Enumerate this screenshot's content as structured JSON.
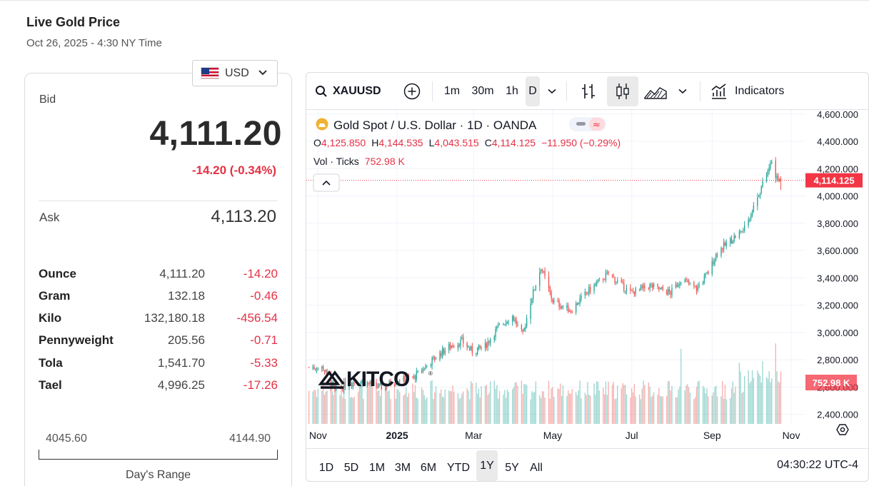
{
  "header": {
    "title": "Live Gold Price",
    "timestamp": "Oct 26, 2025 - 4:30 NY Time"
  },
  "currency": {
    "selected": "USD",
    "flag_icon": "us-flag-icon"
  },
  "quote": {
    "bid_label": "Bid",
    "bid": "4,111.20",
    "change": "-14.20 (-0.34%)",
    "ask_label": "Ask",
    "ask": "4,113.20"
  },
  "units": [
    {
      "name": "Ounce",
      "value": "4,111.20",
      "change": "-14.20"
    },
    {
      "name": "Gram",
      "value": "132.18",
      "change": "-0.46"
    },
    {
      "name": "Kilo",
      "value": "132,180.18",
      "change": "-456.54"
    },
    {
      "name": "Pennyweight",
      "value": "205.56",
      "change": "-0.71"
    },
    {
      "name": "Tola",
      "value": "1,541.70",
      "change": "-5.33"
    },
    {
      "name": "Tael",
      "value": "4,996.25",
      "change": "-17.26"
    }
  ],
  "day_range": {
    "low": "4045.60",
    "high": "4144.90",
    "label": "Day's Range"
  },
  "toolbar": {
    "symbol": "XAUUSD",
    "intervals": [
      "1m",
      "30m",
      "1h",
      "D"
    ],
    "active_interval": "D",
    "indicators_label": "Indicators"
  },
  "legend": {
    "title": "Gold Spot / U.S. Dollar · 1D · OANDA",
    "o_label": "O",
    "o": "4,125.850",
    "h_label": "H",
    "h": "4,144.535",
    "l_label": "L",
    "l": "4,043.515",
    "c_label": "C",
    "c": "4,114.125",
    "change": "−11.950 (−0.29%)",
    "vol_label": "Vol · Ticks",
    "vol": "752.98 K"
  },
  "watermark": "KITCO",
  "price_tag": "4,114.125",
  "volume_tag": "752.98 K",
  "range_buttons": [
    "1D",
    "5D",
    "1M",
    "3M",
    "6M",
    "YTD",
    "1Y",
    "5Y",
    "All"
  ],
  "active_range": "1Y",
  "clock": "04:30:22 UTC-4",
  "colors": {
    "up": "#26a69a",
    "down": "#ef5350",
    "change": "#e53145",
    "tag": "#f23645"
  },
  "chart_data": {
    "type": "candlestick",
    "y_axis_labels": [
      "4,600.000",
      "4,400.000",
      "4,200.000",
      "4,000.000",
      "3,800.000",
      "3,600.000",
      "3,400.000",
      "3,200.000",
      "3,000.000",
      "2,800.000",
      "2,600.000",
      "2,400.000"
    ],
    "x_axis_labels": [
      "Nov",
      "2025",
      "Mar",
      "May",
      "Jul",
      "Sep",
      "Nov"
    ],
    "x_axis_bold": "2025",
    "ylim": [
      2330,
      4630
    ],
    "last_close": 4114.125,
    "close_path": [
      [
        "2024-10-26",
        2745
      ],
      [
        "2024-11-05",
        2740
      ],
      [
        "2024-11-14",
        2570
      ],
      [
        "2024-11-25",
        2630
      ],
      [
        "2024-12-05",
        2640
      ],
      [
        "2024-12-19",
        2600
      ],
      [
        "2025-01-02",
        2650
      ],
      [
        "2025-01-14",
        2670
      ],
      [
        "2025-01-24",
        2760
      ],
      [
        "2025-02-05",
        2860
      ],
      [
        "2025-02-11",
        2900
      ],
      [
        "2025-02-20",
        2935
      ],
      [
        "2025-02-28",
        2860
      ],
      [
        "2025-03-10",
        2900
      ],
      [
        "2025-03-20",
        3040
      ],
      [
        "2025-03-31",
        3120
      ],
      [
        "2025-04-08",
        2980
      ],
      [
        "2025-04-14",
        3230
      ],
      [
        "2025-04-22",
        3480
      ],
      [
        "2025-05-01",
        3230
      ],
      [
        "2025-05-15",
        3160
      ],
      [
        "2025-05-28",
        3300
      ],
      [
        "2025-06-13",
        3430
      ],
      [
        "2025-06-30",
        3290
      ],
      [
        "2025-07-15",
        3340
      ],
      [
        "2025-07-31",
        3290
      ],
      [
        "2025-08-08",
        3390
      ],
      [
        "2025-08-20",
        3320
      ],
      [
        "2025-08-29",
        3440
      ],
      [
        "2025-09-05",
        3590
      ],
      [
        "2025-09-16",
        3680
      ],
      [
        "2025-09-26",
        3760
      ],
      [
        "2025-10-08",
        4040
      ],
      [
        "2025-10-17",
        4250
      ],
      [
        "2025-10-21",
        4120
      ],
      [
        "2025-10-24",
        4114
      ]
    ],
    "volume_spikes": [
      [
        "2025-08-08",
        2880
      ],
      [
        "2025-10-20",
        2920
      ]
    ],
    "last_candle": {
      "open": 4125.85,
      "high": 4144.535,
      "low": 4043.515,
      "close": 4114.125,
      "volume": "752.98 K"
    }
  }
}
